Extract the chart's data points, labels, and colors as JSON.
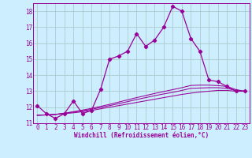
{
  "xlabel": "Windchill (Refroidissement éolien,°C)",
  "bg_color": "#cceeff",
  "grid_color": "#aacccc",
  "line_color": "#990099",
  "y_main": [
    12.1,
    11.6,
    11.3,
    11.6,
    12.4,
    11.6,
    11.8,
    13.1,
    15.0,
    15.2,
    15.5,
    16.6,
    15.8,
    16.2,
    17.0,
    18.3,
    18.0,
    16.3,
    15.5,
    13.7,
    13.6,
    13.3,
    13.0,
    13.0
  ],
  "y_line1": [
    11.5,
    11.52,
    11.55,
    11.6,
    11.65,
    11.72,
    11.8,
    11.9,
    12.0,
    12.1,
    12.2,
    12.3,
    12.4,
    12.5,
    12.6,
    12.7,
    12.8,
    12.88,
    12.95,
    13.0,
    13.05,
    13.05,
    13.0,
    13.0
  ],
  "y_line2": [
    11.5,
    11.52,
    11.55,
    11.62,
    11.7,
    11.78,
    11.87,
    11.98,
    12.1,
    12.22,
    12.35,
    12.48,
    12.6,
    12.72,
    12.83,
    12.93,
    13.05,
    13.18,
    13.2,
    13.22,
    13.22,
    13.18,
    13.05,
    13.0
  ],
  "y_line3": [
    11.5,
    11.52,
    11.55,
    11.63,
    11.72,
    11.82,
    11.93,
    12.05,
    12.18,
    12.32,
    12.46,
    12.6,
    12.73,
    12.86,
    12.98,
    13.1,
    13.22,
    13.36,
    13.38,
    13.38,
    13.35,
    13.3,
    13.1,
    13.0
  ],
  "ylim": [
    11.0,
    18.5
  ],
  "xlim": [
    -0.5,
    23.5
  ],
  "yticks": [
    11,
    12,
    13,
    14,
    15,
    16,
    17,
    18
  ],
  "xticks": [
    0,
    1,
    2,
    3,
    4,
    5,
    6,
    7,
    8,
    9,
    10,
    11,
    12,
    13,
    14,
    15,
    16,
    17,
    18,
    19,
    20,
    21,
    22,
    23
  ],
  "tick_fontsize": 5.5,
  "xlabel_fontsize": 5.5,
  "lw_main": 0.9,
  "lw_flat": 0.75,
  "marker_size": 2.2
}
